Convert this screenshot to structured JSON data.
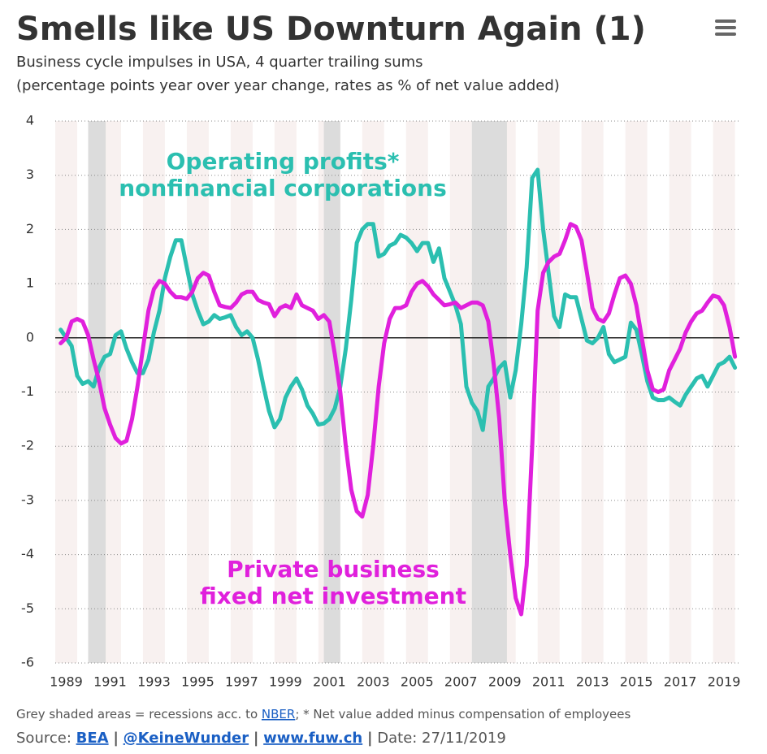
{
  "chart_data": {
    "type": "line",
    "title": "Smells like US Downturn Again (1)",
    "subtitle": [
      "Business cycle impulses in USA, 4 quarter trailing sums",
      "(percentage points year over year change, rates as % of net value added)"
    ],
    "x": [
      1988.75,
      1989,
      1989.25,
      1989.5,
      1989.75,
      1990,
      1990.25,
      1990.5,
      1990.75,
      1991,
      1991.25,
      1991.5,
      1991.75,
      1992,
      1992.25,
      1992.5,
      1992.75,
      1993,
      1993.25,
      1993.5,
      1993.75,
      1994,
      1994.25,
      1994.5,
      1994.75,
      1995,
      1995.25,
      1995.5,
      1995.75,
      1996,
      1996.25,
      1996.5,
      1996.75,
      1997,
      1997.25,
      1997.5,
      1997.75,
      1998,
      1998.25,
      1998.5,
      1998.75,
      1999,
      1999.25,
      1999.5,
      1999.75,
      2000,
      2000.25,
      2000.5,
      2000.75,
      2001,
      2001.25,
      2001.5,
      2001.75,
      2002,
      2002.25,
      2002.5,
      2002.75,
      2003,
      2003.25,
      2003.5,
      2003.75,
      2004,
      2004.25,
      2004.5,
      2004.75,
      2005,
      2005.25,
      2005.5,
      2005.75,
      2006,
      2006.25,
      2006.5,
      2006.75,
      2007,
      2007.25,
      2007.5,
      2007.75,
      2008,
      2008.25,
      2008.5,
      2008.75,
      2009,
      2009.25,
      2009.5,
      2009.75,
      2010,
      2010.25,
      2010.5,
      2010.75,
      2011,
      2011.25,
      2011.5,
      2011.75,
      2012,
      2012.25,
      2012.5,
      2012.75,
      2013,
      2013.25,
      2013.5,
      2013.75,
      2014,
      2014.25,
      2014.5,
      2014.75,
      2015,
      2015.25,
      2015.5,
      2015.75,
      2016,
      2016.25,
      2016.5,
      2016.75,
      2017,
      2017.25,
      2017.5,
      2017.75,
      2018,
      2018.25,
      2018.5,
      2018.75,
      2019,
      2019.25,
      2019.5
    ],
    "series": [
      {
        "label_lines": [
          "Operating profits*",
          "nonfinancial corporations"
        ],
        "color": "#2bbfb0",
        "values": [
          0.15,
          0,
          -0.15,
          -0.7,
          -0.85,
          -0.8,
          -0.9,
          -0.55,
          -0.35,
          -0.3,
          0.05,
          0.12,
          -0.2,
          -0.45,
          -0.65,
          -0.65,
          -0.4,
          0.1,
          0.5,
          1.1,
          1.5,
          1.8,
          1.8,
          1.3,
          0.8,
          0.5,
          0.25,
          0.3,
          0.42,
          0.35,
          0.38,
          0.42,
          0.2,
          0.05,
          0.12,
          0,
          -0.4,
          -0.9,
          -1.35,
          -1.65,
          -1.5,
          -1.1,
          -0.9,
          -0.75,
          -0.95,
          -1.25,
          -1.4,
          -1.6,
          -1.58,
          -1.5,
          -1.3,
          -0.9,
          -0.2,
          0.7,
          1.75,
          2,
          2.1,
          2.1,
          1.5,
          1.55,
          1.7,
          1.75,
          1.9,
          1.85,
          1.75,
          1.6,
          1.75,
          1.75,
          1.4,
          1.65,
          1.1,
          0.85,
          0.6,
          0.25,
          -0.9,
          -1.2,
          -1.35,
          -1.7,
          -0.9,
          -0.75,
          -0.55,
          -0.45,
          -1.1,
          -0.6,
          0.25,
          1.3,
          2.95,
          3.1,
          2,
          1.2,
          0.4,
          0.2,
          0.8,
          0.75,
          0.75,
          0.35,
          -0.05,
          -0.1,
          0,
          0.2,
          -0.3,
          -0.45,
          -0.4,
          -0.35,
          0.28,
          0.15,
          -0.3,
          -0.8,
          -1.1,
          -1.15,
          -1.15,
          -1.1,
          -1.18,
          -1.25,
          -1.05,
          -0.9,
          -0.75,
          -0.7,
          -0.9,
          -0.7,
          -0.5,
          -0.45,
          -0.35,
          -0.55
        ]
      },
      {
        "label_lines": [
          "Private business",
          "fixed net investment"
        ],
        "color": "#e020dc",
        "values": [
          -0.1,
          0,
          0.3,
          0.35,
          0.3,
          0.05,
          -0.4,
          -0.8,
          -1.3,
          -1.6,
          -1.85,
          -1.95,
          -1.9,
          -1.5,
          -0.9,
          -0.2,
          0.5,
          0.9,
          1.05,
          1,
          0.85,
          0.75,
          0.75,
          0.72,
          0.85,
          1.1,
          1.2,
          1.15,
          0.85,
          0.6,
          0.57,
          0.55,
          0.65,
          0.8,
          0.85,
          0.85,
          0.7,
          0.65,
          0.62,
          0.4,
          0.55,
          0.6,
          0.55,
          0.8,
          0.6,
          0.55,
          0.5,
          0.35,
          0.42,
          0.3,
          -0.3,
          -1,
          -2,
          -2.8,
          -3.2,
          -3.3,
          -2.9,
          -2,
          -0.9,
          -0.1,
          0.35,
          0.55,
          0.55,
          0.6,
          0.85,
          1,
          1.05,
          0.95,
          0.8,
          0.7,
          0.6,
          0.62,
          0.65,
          0.55,
          0.6,
          0.65,
          0.65,
          0.6,
          0.3,
          -0.5,
          -1.5,
          -3,
          -4,
          -4.8,
          -5.1,
          -4.2,
          -2,
          0.5,
          1.2,
          1.4,
          1.5,
          1.55,
          1.8,
          2.1,
          2.05,
          1.8,
          1.2,
          0.55,
          0.35,
          0.3,
          0.45,
          0.8,
          1.1,
          1.15,
          1,
          0.6,
          0,
          -0.6,
          -0.95,
          -1,
          -0.95,
          -0.6,
          -0.4,
          -0.2,
          0.1,
          0.3,
          0.45,
          0.5,
          0.65,
          0.78,
          0.75,
          0.6,
          0.2,
          -0.35
        ]
      }
    ],
    "recessions": [
      [
        1990.0,
        1990.8
      ],
      [
        2000.75,
        2001.5
      ],
      [
        2007.5,
        2009.1
      ]
    ],
    "xlim": [
      1988.5,
      2019.7
    ],
    "xticks": [
      1989,
      1991,
      1993,
      1995,
      1997,
      1999,
      2001,
      2003,
      2005,
      2007,
      2009,
      2011,
      2013,
      2015,
      2017,
      2019
    ],
    "ylim": [
      -6,
      4
    ],
    "yticks": [
      -6,
      -5,
      -4,
      -3,
      -2,
      -1,
      0,
      1,
      2,
      3,
      4
    ],
    "grid": true,
    "zero_line": true,
    "alternate_year_shading": true,
    "footnote": {
      "before": "Grey shaded areas = recessions acc. to ",
      "link": "NBER",
      "after": "; * Net value added minus compensation of employees"
    },
    "source": {
      "label": "Source:",
      "links": [
        "BEA",
        "@KeineWunder",
        "www.fuw.ch"
      ],
      "separator": "|",
      "date": "Date: 27/11/2019"
    }
  }
}
